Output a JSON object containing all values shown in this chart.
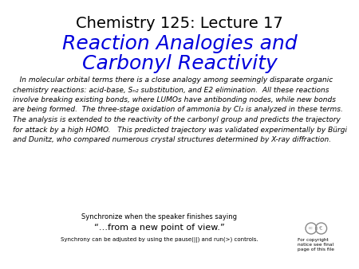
{
  "background_color": "#ffffff",
  "title": "Chemistry 125: Lecture 17",
  "title_fontsize": 14,
  "title_color": "#000000",
  "subtitle_line1": "Reaction Analogies and",
  "subtitle_line2": "Carbonyl Reactivity",
  "subtitle_fontsize": 18,
  "subtitle_color": "#0000dd",
  "body_text": "   In molecular orbital terms there is a close analogy among seemingly disparate organic\nchemistry reactions: acid-base, Sₙ₂ substitution, and E2 elimination.  All these reactions\ninvolve breaking existing bonds, where LUMOs have antibonding nodes, while new bonds\nare being formed.  The three-stage oxidation of ammonia by Cl₂ is analyzed in these terms.\nThe analysis is extended to the reactivity of the carbonyl group and predicts the trajectory\nfor attack by a high HOMO.   This predicted trajectory was validated experimentally by Bürgi\nand Dunitz, who compared numerous crystal structures determined by X-ray diffraction.",
  "body_fontsize": 6.5,
  "body_color": "#000000",
  "sync_text": "Synchronize when the speaker finishes saying",
  "sync_fontsize": 6,
  "quote_text": "“…from a new point of view.”",
  "quote_fontsize": 8,
  "controls_text": "Synchrony can be adjusted by using the pause(||) and run(>) controls.",
  "controls_fontsize": 5,
  "copyright_text": "For copyright\nnotice see final\npage of this file",
  "copyright_fontsize": 4.2
}
